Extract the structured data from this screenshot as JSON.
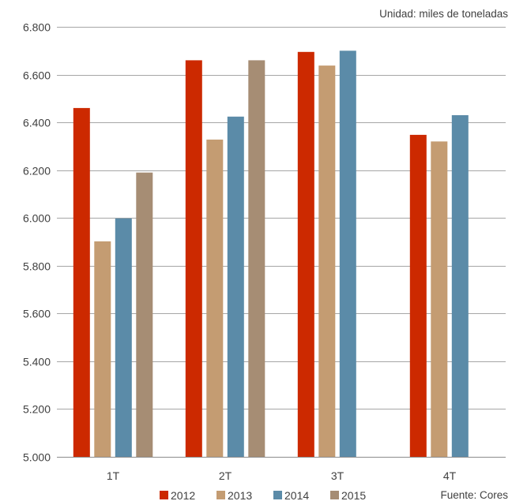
{
  "chart_data": {
    "type": "bar",
    "unit_note": "Unidad: miles de toneladas",
    "source_note": "Fuente: Cores",
    "categories": [
      "1T",
      "2T",
      "3T",
      "4T"
    ],
    "series": [
      {
        "name": "2012",
        "color": "#cc2900",
        "values": [
          6460,
          6660,
          6695,
          6348
        ]
      },
      {
        "name": "2013",
        "color": "#c49c72",
        "values": [
          5902,
          6328,
          6638,
          6320
        ]
      },
      {
        "name": "2014",
        "color": "#5b8ba8",
        "values": [
          5998,
          6424,
          6700,
          6430
        ]
      },
      {
        "name": "2015",
        "color": "#a68d74",
        "values": [
          6190,
          6660,
          null,
          null
        ]
      }
    ],
    "ylim": [
      5000,
      6800
    ],
    "yticks": [
      5000,
      5200,
      5400,
      5600,
      5800,
      6000,
      6200,
      6400,
      6600,
      6800
    ],
    "ytick_labels": [
      "5.000",
      "5.200",
      "5.400",
      "5.600",
      "5.800",
      "6.000",
      "6.200",
      "6.400",
      "6.600",
      "6.800"
    ],
    "grid": true,
    "legend_position": "bottom"
  }
}
